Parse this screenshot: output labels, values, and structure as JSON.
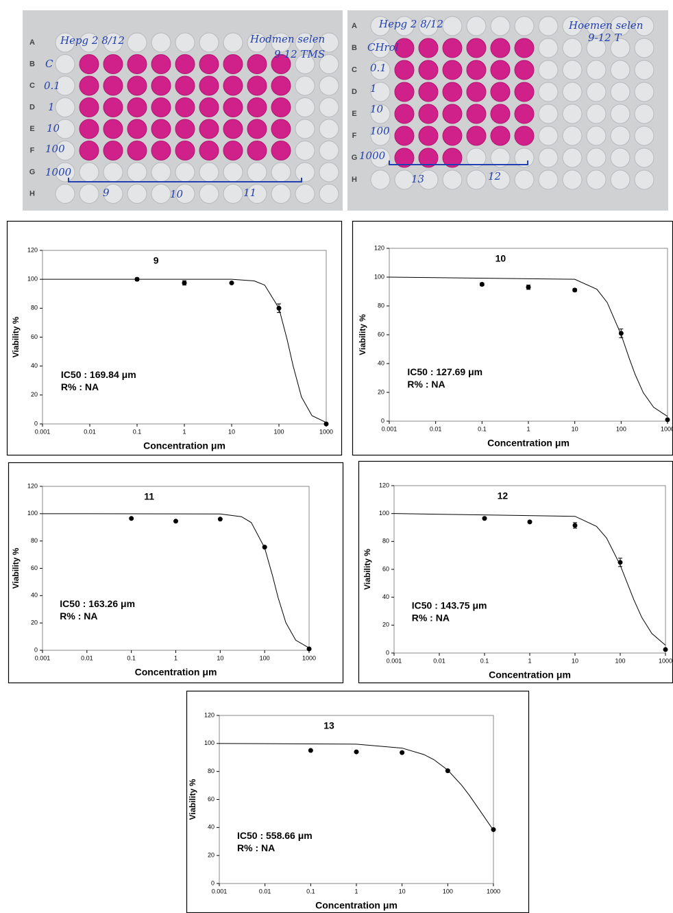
{
  "plates": [
    {
      "rows": [
        "A",
        "B",
        "C",
        "D",
        "E",
        "F",
        "G",
        "H"
      ],
      "notes": [
        "Hepg 2 8/12",
        "Hodmen selen",
        "9-12 TMS",
        "C",
        "0.1",
        "1",
        "10",
        "100",
        "1000",
        "9",
        "10",
        "11"
      ]
    },
    {
      "rows": [
        "A",
        "B",
        "C",
        "D",
        "E",
        "F",
        "G",
        "H"
      ],
      "notes": [
        "Hepg 2 8/12",
        "Hoemen selen",
        "9-12 T",
        "CHrol",
        "0.1",
        "1",
        "10",
        "100",
        "1000",
        "13",
        "12"
      ]
    }
  ],
  "chart_data": [
    {
      "type": "scatter",
      "title": "9",
      "xlabel": "Concentration μm",
      "ylabel": "Viability %",
      "annotations": [
        "IC50 : 169.84 μm",
        "R% : NA"
      ],
      "xscale": "log",
      "xlim": [
        0.001,
        1000
      ],
      "xticks": [
        0.001,
        0.01,
        0.1,
        1,
        10,
        100,
        1000
      ],
      "ylim": [
        0,
        120
      ],
      "yticks": [
        0,
        20,
        40,
        60,
        80,
        100,
        120
      ],
      "color": "#000000",
      "x": [
        0.1,
        1,
        10,
        100,
        1000
      ],
      "values": [
        100,
        97.5,
        97.5,
        80,
        0
      ],
      "errors": [
        1,
        1.5,
        0.5,
        3,
        0
      ],
      "fit": {
        "x": [
          0.001,
          10,
          30,
          50,
          100,
          150,
          200,
          300,
          500,
          1000
        ],
        "y": [
          100,
          100,
          98.9,
          96,
          80,
          58,
          40,
          18.6,
          5.7,
          1
        ]
      }
    },
    {
      "type": "scatter",
      "title": "10",
      "xlabel": "Concentration μm",
      "ylabel": "Viability %",
      "annotations": [
        "IC50 : 127.69 μm",
        "R% : NA"
      ],
      "xscale": "log",
      "xlim": [
        0.001,
        1000
      ],
      "xticks": [
        0.001,
        0.01,
        0.1,
        1,
        10,
        100,
        1000
      ],
      "ylim": [
        0,
        120
      ],
      "yticks": [
        0,
        20,
        40,
        60,
        80,
        100,
        120
      ],
      "color": "#000000",
      "x": [
        0.1,
        1,
        10,
        100,
        1000
      ],
      "values": [
        95,
        93,
        91,
        61,
        1
      ],
      "errors": [
        1,
        1.5,
        1,
        3,
        0
      ],
      "fit": {
        "x": [
          0.001,
          10,
          30,
          50,
          100,
          150,
          200,
          300,
          500,
          1000
        ],
        "y": [
          100,
          98.5,
          91.6,
          82.4,
          60,
          43.5,
          32.5,
          19.8,
          9.7,
          3.3
        ]
      }
    },
    {
      "type": "scatter",
      "title": "11",
      "xlabel": "Concentration μm",
      "ylabel": "Viability %",
      "annotations": [
        "IC50 : 163.26 μm",
        "R% : NA"
      ],
      "xscale": "log",
      "xlim": [
        0.001,
        1000
      ],
      "xticks": [
        0.001,
        0.01,
        0.1,
        1,
        10,
        100,
        1000
      ],
      "ylim": [
        0,
        120
      ],
      "yticks": [
        0,
        20,
        40,
        60,
        80,
        100,
        120
      ],
      "color": "#000000",
      "x": [
        0.1,
        1,
        10,
        100,
        1000
      ],
      "values": [
        96.5,
        94.5,
        96,
        75.5,
        1
      ],
      "errors": [
        0.5,
        0.5,
        0.5,
        0.5,
        0
      ],
      "fit": {
        "x": [
          0.001,
          10,
          30,
          50,
          100,
          150,
          200,
          300,
          500,
          1000
        ],
        "y": [
          100,
          99.8,
          97.8,
          93.5,
          75,
          54.7,
          38.8,
          20.2,
          7.4,
          1.7
        ]
      }
    },
    {
      "type": "scatter",
      "title": "12",
      "xlabel": "Concentration μm",
      "ylabel": "Viability %",
      "annotations": [
        "IC50 : 143.75 μm",
        "R% : NA"
      ],
      "xscale": "log",
      "xlim": [
        0.001,
        1000
      ],
      "xticks": [
        0.001,
        0.01,
        0.1,
        1,
        10,
        100,
        1000
      ],
      "ylim": [
        0,
        120
      ],
      "yticks": [
        0,
        20,
        40,
        60,
        80,
        100,
        120
      ],
      "color": "#000000",
      "x": [
        0.1,
        1,
        10,
        100,
        1000
      ],
      "values": [
        96.5,
        94,
        91.5,
        65,
        2.5
      ],
      "errors": [
        0.5,
        0.5,
        2,
        3,
        0
      ],
      "fit": {
        "x": [
          0.001,
          10,
          30,
          50,
          100,
          150,
          200,
          300,
          500,
          1000
        ],
        "y": [
          100,
          98,
          90.8,
          82.4,
          63,
          48.5,
          38.2,
          25.5,
          14,
          5.6
        ]
      }
    },
    {
      "type": "scatter",
      "title": "13",
      "xlabel": "Concentration μm",
      "ylabel": "Viability %",
      "annotations": [
        "IC50 : 558.66 μm",
        "R% : NA"
      ],
      "xscale": "log",
      "xlim": [
        0.001,
        1000
      ],
      "xticks": [
        0.001,
        0.01,
        0.1,
        1,
        10,
        100,
        1000
      ],
      "ylim": [
        0,
        120
      ],
      "yticks": [
        0,
        20,
        40,
        60,
        80,
        100,
        120
      ],
      "color": "#000000",
      "x": [
        0.1,
        1,
        10,
        100,
        1000
      ],
      "values": [
        95,
        94,
        93.5,
        80.5,
        38.5
      ],
      "errors": [
        0.5,
        0.5,
        0.5,
        0.5,
        0
      ],
      "fit": {
        "x": [
          0.001,
          1,
          10,
          30,
          50,
          100,
          200,
          300,
          500,
          1000
        ],
        "y": [
          100,
          99.5,
          96.7,
          92.1,
          88.4,
          81,
          70.3,
          62.8,
          52.3,
          38
        ]
      }
    }
  ]
}
